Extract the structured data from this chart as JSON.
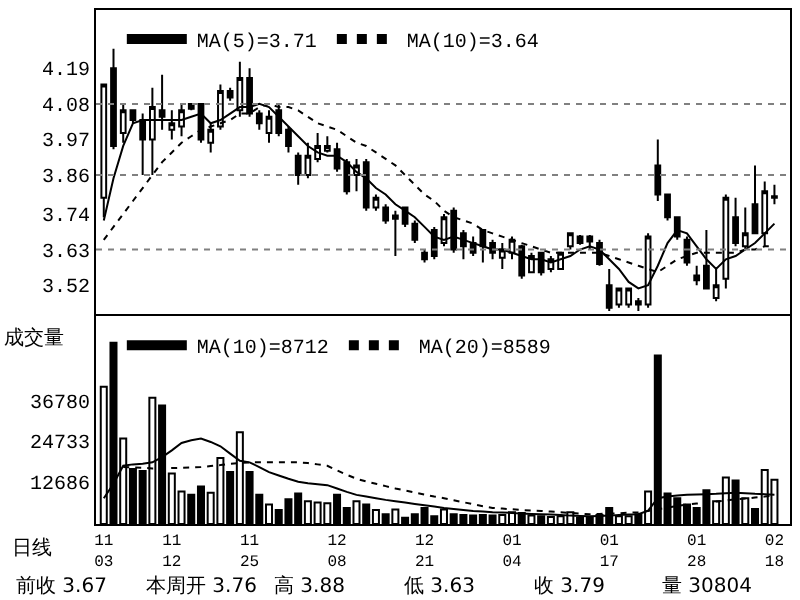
{
  "chart_data": [
    {
      "type": "candlestick",
      "legend": "top left",
      "grid": false,
      "color": "#000000",
      "ohlc": [
        [
          3.79,
          4.14,
          3.73,
          4.14
        ],
        [
          4.19,
          4.25,
          3.94,
          3.95
        ],
        [
          3.99,
          4.08,
          3.96,
          4.06
        ],
        [
          4.06,
          4.06,
          4.02,
          4.03
        ],
        [
          4.03,
          4.05,
          3.86,
          3.97
        ],
        [
          3.97,
          4.13,
          3.86,
          4.07
        ],
        [
          4.06,
          4.17,
          4.0,
          4.04
        ],
        [
          4.0,
          4.06,
          3.97,
          4.02
        ],
        [
          4.01,
          4.08,
          3.98,
          4.06
        ],
        [
          4.08,
          4.08,
          4.06,
          4.065
        ],
        [
          4.08,
          4.08,
          3.96,
          3.97
        ],
        [
          3.96,
          4.02,
          3.93,
          4.0
        ],
        [
          4.01,
          4.14,
          4.0,
          4.12
        ],
        [
          4.12,
          4.13,
          4.09,
          4.1
        ],
        [
          4.06,
          4.21,
          4.04,
          4.16
        ],
        [
          4.16,
          4.19,
          4.04,
          4.05
        ],
        [
          4.05,
          4.06,
          4.0,
          4.02
        ],
        [
          3.99,
          4.06,
          3.96,
          4.04
        ],
        [
          4.06,
          4.08,
          3.98,
          3.99
        ],
        [
          4.0,
          4.01,
          3.93,
          3.95
        ],
        [
          3.92,
          3.93,
          3.83,
          3.86
        ],
        [
          3.86,
          3.96,
          3.85,
          3.92
        ],
        [
          3.91,
          3.99,
          3.9,
          3.95
        ],
        [
          3.935,
          3.98,
          3.93,
          3.95
        ],
        [
          3.94,
          3.96,
          3.87,
          3.88
        ],
        [
          3.9,
          3.91,
          3.8,
          3.81
        ],
        [
          3.86,
          3.91,
          3.81,
          3.89
        ],
        [
          3.9,
          3.91,
          3.75,
          3.76
        ],
        [
          3.76,
          3.8,
          3.75,
          3.79
        ],
        [
          3.76,
          3.77,
          3.71,
          3.72
        ],
        [
          3.725,
          3.75,
          3.61,
          3.735
        ],
        [
          3.76,
          3.76,
          3.7,
          3.71
        ],
        [
          3.71,
          3.72,
          3.65,
          3.66
        ],
        [
          3.62,
          3.63,
          3.59,
          3.6
        ],
        [
          3.69,
          3.7,
          3.6,
          3.61
        ],
        [
          3.65,
          3.74,
          3.64,
          3.73
        ],
        [
          3.75,
          3.76,
          3.62,
          3.63
        ],
        [
          3.68,
          3.69,
          3.6,
          3.64
        ],
        [
          3.65,
          3.67,
          3.61,
          3.62
        ],
        [
          3.69,
          3.69,
          3.59,
          3.64
        ],
        [
          3.65,
          3.66,
          3.6,
          3.62
        ],
        [
          3.605,
          3.65,
          3.57,
          3.63
        ],
        [
          3.62,
          3.67,
          3.6,
          3.66
        ],
        [
          3.64,
          3.645,
          3.54,
          3.55
        ],
        [
          3.56,
          3.62,
          3.56,
          3.61
        ],
        [
          3.62,
          3.62,
          3.55,
          3.56
        ],
        [
          3.57,
          3.61,
          3.56,
          3.6
        ],
        [
          3.57,
          3.62,
          3.57,
          3.62
        ],
        [
          3.64,
          3.68,
          3.63,
          3.68
        ],
        [
          3.67,
          3.675,
          3.645,
          3.65
        ],
        [
          3.67,
          3.675,
          3.63,
          3.655
        ],
        [
          3.65,
          3.66,
          3.58,
          3.585
        ],
        [
          3.52,
          3.57,
          3.44,
          3.45
        ],
        [
          3.46,
          3.51,
          3.45,
          3.51
        ],
        [
          3.46,
          3.51,
          3.45,
          3.51
        ],
        [
          3.47,
          3.48,
          3.44,
          3.46
        ],
        [
          3.46,
          3.68,
          3.45,
          3.67
        ],
        [
          3.89,
          3.97,
          3.78,
          3.8
        ],
        [
          3.8,
          3.8,
          3.72,
          3.73
        ],
        [
          3.73,
          3.73,
          3.66,
          3.67
        ],
        [
          3.66,
          3.67,
          3.58,
          3.59
        ],
        [
          3.55,
          3.58,
          3.52,
          3.535
        ],
        [
          3.58,
          3.69,
          3.51,
          3.51
        ],
        [
          3.48,
          3.57,
          3.47,
          3.52
        ],
        [
          3.54,
          3.8,
          3.51,
          3.79
        ],
        [
          3.73,
          3.79,
          3.64,
          3.65
        ],
        [
          3.64,
          3.76,
          3.63,
          3.68
        ],
        [
          3.77,
          3.89,
          3.68,
          3.68
        ],
        [
          3.68,
          3.84,
          3.64,
          3.81
        ],
        [
          3.79,
          3.83,
          3.77,
          3.795
        ]
      ],
      "series": [
        {
          "name": "MA(5)=3.71",
          "type": "line",
          "color": "#000000",
          "line_style": "solid",
          "values": [
            3.72,
            3.85,
            3.95,
            4.02,
            4.03,
            4.03,
            4.03,
            4.03,
            4.03,
            4.04,
            4.05,
            4.02,
            4.03,
            4.05,
            4.07,
            4.07,
            4.08,
            4.07,
            4.04,
            4.01,
            3.98,
            3.95,
            3.93,
            3.92,
            3.92,
            3.9,
            3.87,
            3.85,
            3.82,
            3.8,
            3.77,
            3.75,
            3.73,
            3.7,
            3.67,
            3.66,
            3.67,
            3.66,
            3.65,
            3.64,
            3.63,
            3.63,
            3.62,
            3.61,
            3.6,
            3.6,
            3.59,
            3.6,
            3.61,
            3.63,
            3.64,
            3.63,
            3.6,
            3.57,
            3.53,
            3.51,
            3.52,
            3.58,
            3.65,
            3.69,
            3.68,
            3.64,
            3.6,
            3.57,
            3.6,
            3.61,
            3.63,
            3.65,
            3.68,
            3.71
          ]
        },
        {
          "name": "MA(10)=3.64",
          "type": "line",
          "color": "#000000",
          "line_style": "dotted",
          "values": [
            3.66,
            3.7,
            3.74,
            3.78,
            3.82,
            3.86,
            3.9,
            3.93,
            3.96,
            3.98,
            4.0,
            4.01,
            4.02,
            4.03,
            4.05,
            4.05,
            4.07,
            4.08,
            4.07,
            4.07,
            4.06,
            4.04,
            4.02,
            4.01,
            4.0,
            3.98,
            3.96,
            3.95,
            3.93,
            3.91,
            3.89,
            3.86,
            3.83,
            3.8,
            3.78,
            3.75,
            3.73,
            3.72,
            3.71,
            3.69,
            3.68,
            3.67,
            3.66,
            3.65,
            3.64,
            3.63,
            3.62,
            3.62,
            3.62,
            3.62,
            3.62,
            3.62,
            3.61,
            3.6,
            3.59,
            3.58,
            3.57,
            3.56,
            3.58,
            3.6,
            3.61,
            3.62,
            3.62,
            3.62,
            3.62,
            3.62,
            3.63,
            3.63,
            3.64,
            3.64
          ]
        }
      ],
      "ylim": [
        3.43,
        4.37
      ],
      "yticks": [
        4.19,
        4.08,
        3.97,
        3.86,
        3.74,
        3.63,
        3.52
      ],
      "ref_lines": [
        {
          "axis": "y",
          "value": 4.08,
          "color": "#808080",
          "line_style": "dotted"
        },
        {
          "axis": "y",
          "value": 3.86,
          "color": "#808080",
          "line_style": "dotted"
        },
        {
          "axis": "y",
          "value": 3.63,
          "color": "#808080",
          "line_style": "dotted"
        }
      ]
    },
    {
      "type": "bar",
      "legend": "top left",
      "grid": false,
      "ylabel": "成交量",
      "categories": [
        "11\n03",
        null,
        null,
        null,
        null,
        null,
        null,
        "11\n12",
        null,
        null,
        null,
        null,
        null,
        null,
        null,
        "11\n25",
        null,
        null,
        null,
        null,
        null,
        null,
        null,
        null,
        "12\n08",
        null,
        null,
        null,
        null,
        null,
        null,
        null,
        null,
        "12\n21",
        null,
        null,
        null,
        null,
        null,
        null,
        null,
        null,
        "01\n04",
        null,
        null,
        null,
        null,
        null,
        null,
        null,
        null,
        null,
        "01\n17",
        null,
        null,
        null,
        null,
        null,
        null,
        null,
        null,
        "01\n28",
        null,
        null,
        null,
        null,
        null,
        null,
        null,
        "02\n18"
      ],
      "series": [
        {
          "type": "bar",
          "values": [
            41000,
            54100,
            25500,
            16400,
            15800,
            37700,
            35400,
            15100,
            9700,
            8700,
            11200,
            9300,
            19700,
            15500,
            27400,
            15500,
            8700,
            5800,
            4200,
            7400,
            9100,
            6800,
            6400,
            6200,
            8700,
            4800,
            6800,
            5800,
            4200,
            2900,
            4300,
            1900,
            2900,
            4800,
            2300,
            4300,
            2900,
            2700,
            2500,
            2700,
            2500,
            2700,
            3500,
            3300,
            2500,
            2300,
            2100,
            2300,
            3500,
            1900,
            1900,
            2700,
            4800,
            2300,
            2300,
            2900,
            9700,
            50300,
            9100,
            7700,
            5800,
            4800,
            10100,
            6800,
            13900,
            13000,
            7700,
            4500,
            16100,
            13200
          ],
          "colors": [
            "#ffffff",
            "#000000",
            "#ffffff",
            "#000000",
            "#000000",
            "#ffffff",
            "#000000",
            "#ffffff",
            "#ffffff",
            "#000000",
            "#000000",
            "#ffffff",
            "#ffffff",
            "#000000",
            "#ffffff",
            "#000000",
            "#000000",
            "#ffffff",
            "#000000",
            "#000000",
            "#000000",
            "#ffffff",
            "#ffffff",
            "#ffffff",
            "#000000",
            "#000000",
            "#ffffff",
            "#000000",
            "#ffffff",
            "#000000",
            "#ffffff",
            "#000000",
            "#000000",
            "#000000",
            "#000000",
            "#ffffff",
            "#000000",
            "#000000",
            "#000000",
            "#000000",
            "#000000",
            "#ffffff",
            "#ffffff",
            "#000000",
            "#ffffff",
            "#000000",
            "#ffffff",
            "#ffffff",
            "#ffffff",
            "#000000",
            "#000000",
            "#000000",
            "#000000",
            "#ffffff",
            "#ffffff",
            "#000000",
            "#ffffff",
            "#000000",
            "#000000",
            "#000000",
            "#000000",
            "#000000",
            "#000000",
            "#ffffff",
            "#ffffff",
            "#000000",
            "#ffffff",
            "#000000",
            "#ffffff",
            "#ffffff"
          ]
        },
        {
          "name": "MA(10)=8712",
          "type": "line",
          "color": "#000000",
          "line_style": "solid",
          "values": [
            7700,
            12000,
            17400,
            17800,
            18000,
            18400,
            20000,
            22000,
            24200,
            25000,
            25500,
            24500,
            23200,
            21000,
            18900,
            18400,
            17000,
            15500,
            14500,
            13500,
            12600,
            12200,
            11900,
            11600,
            10600,
            9600,
            8700,
            8200,
            7700,
            7200,
            6800,
            6400,
            6000,
            5600,
            5200,
            4800,
            4500,
            4200,
            3900,
            3700,
            3500,
            3400,
            3300,
            3100,
            3000,
            2900,
            2800,
            2700,
            2500,
            2400,
            2300,
            2400,
            2500,
            2700,
            2800,
            2900,
            4000,
            7700,
            8200,
            8500,
            8700,
            8800,
            8900,
            9000,
            9200,
            9300,
            9200,
            9000,
            8900,
            8700
          ]
        },
        {
          "name": "MA(20)=8589",
          "type": "line",
          "color": "#000000",
          "line_style": "dotted",
          "values": [
            null,
            null,
            17000,
            16900,
            16800,
            16600,
            16600,
            16700,
            16800,
            16900,
            17000,
            17300,
            17600,
            18000,
            18200,
            18400,
            18400,
            18400,
            18400,
            18400,
            18400,
            18200,
            17800,
            17400,
            16000,
            14700,
            13500,
            12700,
            12000,
            11300,
            10600,
            10000,
            9400,
            8800,
            8200,
            7700,
            7100,
            6500,
            5900,
            5300,
            4800,
            4600,
            4400,
            4200,
            4000,
            3900,
            3700,
            3500,
            3300,
            3100,
            2900,
            3000,
            3100,
            3200,
            3400,
            3500,
            3900,
            4400,
            4900,
            5400,
            5800,
            6100,
            6400,
            6700,
            7000,
            7400,
            7600,
            7900,
            8200,
            8600
          ]
        }
      ],
      "ylim": [
        0,
        62000
      ],
      "yticks": [
        12686,
        24733,
        36780
      ],
      "annotations": [
        "日线",
        "前收 3.67",
        "本周开 3.76",
        "高 3.88",
        "低 3.63",
        "收 3.79",
        "量 30804"
      ]
    }
  ]
}
